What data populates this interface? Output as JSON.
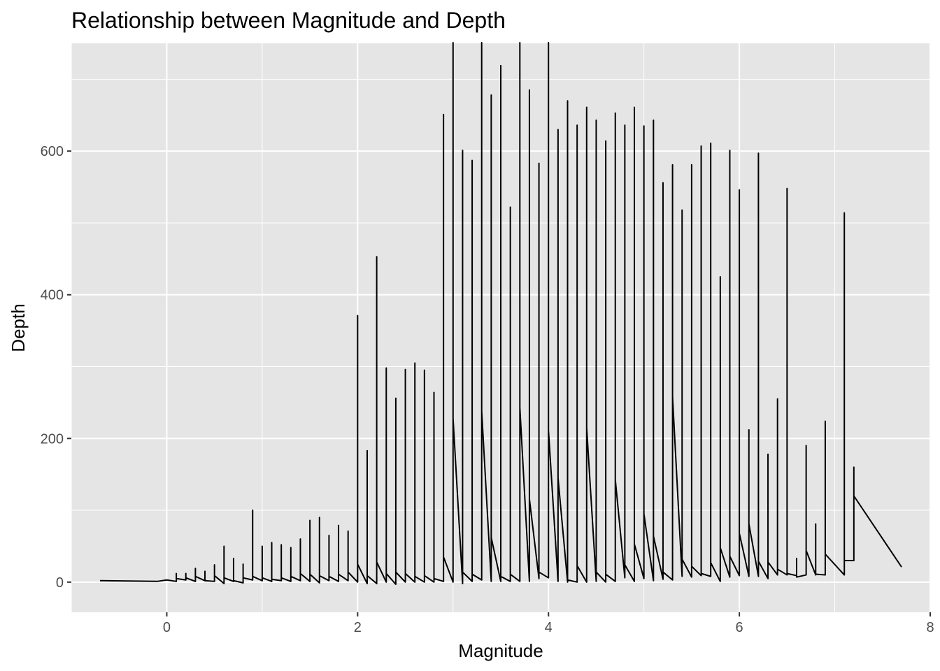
{
  "chart_data": {
    "type": "line",
    "title": "Relationship between Magnitude and Depth",
    "xlabel": "Magnitude",
    "ylabel": "Depth",
    "xlim": [
      -1.0,
      8.0
    ],
    "ylim": [
      -42,
      750
    ],
    "x_ticks": [
      0,
      2,
      4,
      6,
      8
    ],
    "y_ticks": [
      0,
      200,
      400,
      600
    ],
    "x_tick_labels": [
      "0",
      "2",
      "4",
      "6",
      "8"
    ],
    "y_tick_labels": [
      "0",
      "200",
      "400",
      "600"
    ],
    "grid": true,
    "legend": "none",
    "colors": {
      "panel": "#e5e5e5",
      "grid_major": "#ffffff",
      "line": "#000000"
    },
    "series": [
      {
        "x": [
          -0.7,
          -0.1,
          0.0,
          0.1,
          0.1,
          0.1,
          0.2,
          0.2,
          0.2,
          0.3,
          0.3,
          0.3,
          0.4,
          0.4,
          0.4,
          0.5,
          0.5,
          0.5,
          0.6,
          0.6,
          0.6,
          0.7,
          0.7,
          0.7,
          0.8,
          0.8,
          0.8,
          0.9,
          0.9,
          0.9,
          1.0,
          1.0,
          1.0,
          1.1,
          1.1,
          1.1,
          1.2,
          1.2,
          1.2,
          1.3,
          1.3,
          1.3,
          1.4,
          1.4,
          1.4,
          1.5,
          1.5,
          1.5,
          1.6,
          1.6,
          1.6,
          1.7,
          1.7,
          1.7,
          1.8,
          1.8,
          1.8,
          1.9,
          1.9,
          1.9,
          2.0,
          2.0,
          2.0,
          2.1,
          2.1,
          2.1,
          2.2,
          2.2,
          2.2,
          2.3,
          2.3,
          2.3,
          2.4,
          2.4,
          2.4,
          2.5,
          2.5,
          2.5,
          2.6,
          2.6,
          2.6,
          2.7,
          2.7,
          2.7,
          2.8,
          2.8,
          2.8,
          2.9,
          2.9,
          2.9,
          3.0,
          3.0,
          3.0,
          3.1,
          3.1,
          3.1,
          3.2,
          3.2,
          3.2,
          3.3,
          3.3,
          3.3,
          3.4,
          3.4,
          3.4,
          3.5,
          3.5,
          3.5,
          3.6,
          3.6,
          3.6,
          3.7,
          3.7,
          3.7,
          3.8,
          3.8,
          3.8,
          3.9,
          3.9,
          3.9,
          4.0,
          4.0,
          4.0,
          4.1,
          4.1,
          4.1,
          4.2,
          4.2,
          4.2,
          4.3,
          4.3,
          4.3,
          4.4,
          4.4,
          4.4,
          4.5,
          4.5,
          4.5,
          4.6,
          4.6,
          4.6,
          4.7,
          4.7,
          4.7,
          4.8,
          4.8,
          4.8,
          4.9,
          4.9,
          4.9,
          5.0,
          5.0,
          5.0,
          5.1,
          5.1,
          5.1,
          5.2,
          5.2,
          5.2,
          5.3,
          5.3,
          5.3,
          5.4,
          5.4,
          5.4,
          5.5,
          5.5,
          5.5,
          5.6,
          5.6,
          5.6,
          5.7,
          5.7,
          5.7,
          5.8,
          5.8,
          5.8,
          5.9,
          5.9,
          5.9,
          6.0,
          6.0,
          6.0,
          6.1,
          6.1,
          6.1,
          6.2,
          6.2,
          6.2,
          6.3,
          6.3,
          6.3,
          6.4,
          6.4,
          6.4,
          6.5,
          6.5,
          6.5,
          6.6,
          6.6,
          6.6,
          6.7,
          6.7,
          6.7,
          6.8,
          6.8,
          6.8,
          6.9,
          6.9,
          6.9,
          7.1,
          7.1,
          7.1,
          7.2,
          7.2,
          7.2,
          7.7
        ],
        "y": [
          2,
          1,
          3,
          1,
          12,
          5,
          3,
          12,
          6,
          1,
          19,
          8,
          2,
          15,
          2,
          1,
          24,
          9,
          -2,
          50,
          6,
          1,
          33,
          2,
          -1,
          25,
          6,
          3,
          100,
          8,
          2,
          50,
          6,
          1,
          55,
          4,
          2,
          52,
          6,
          1,
          48,
          8,
          2,
          60,
          12,
          1,
          86,
          11,
          -1,
          90,
          9,
          2,
          65,
          8,
          1,
          79,
          11,
          2,
          71,
          14,
          0,
          371,
          25,
          -2,
          183,
          9,
          -2,
          453,
          28,
          0,
          298,
          12,
          -3,
          256,
          14,
          0,
          296,
          12,
          0,
          305,
          8,
          0,
          295,
          9,
          0,
          264,
          5,
          1,
          651,
          35,
          0,
          751,
          228,
          -2,
          601,
          14,
          1,
          587,
          11,
          3,
          751,
          238,
          1,
          678,
          62,
          1,
          719,
          8,
          1,
          522,
          11,
          1,
          751,
          243,
          1,
          685,
          116,
          5,
          583,
          14,
          6,
          751,
          211,
          1,
          630,
          145,
          0,
          670,
          3,
          0,
          636,
          23,
          0,
          661,
          215,
          1,
          643,
          14,
          0,
          614,
          11,
          1,
          653,
          143,
          6,
          636,
          24,
          1,
          661,
          53,
          5,
          635,
          95,
          2,
          643,
          64,
          4,
          556,
          14,
          3,
          581,
          258,
          8,
          518,
          32,
          7,
          581,
          22,
          9,
          607,
          12,
          8,
          611,
          27,
          1,
          425,
          48,
          7,
          601,
          36,
          9,
          546,
          68,
          8,
          212,
          81,
          8,
          597,
          29,
          5,
          178,
          28,
          10,
          255,
          18,
          10,
          548,
          12,
          9,
          33,
          7,
          10,
          190,
          44,
          10,
          81,
          11,
          10,
          224,
          39,
          10,
          514,
          30,
          30,
          160,
          120,
          21
        ]
      }
    ]
  }
}
